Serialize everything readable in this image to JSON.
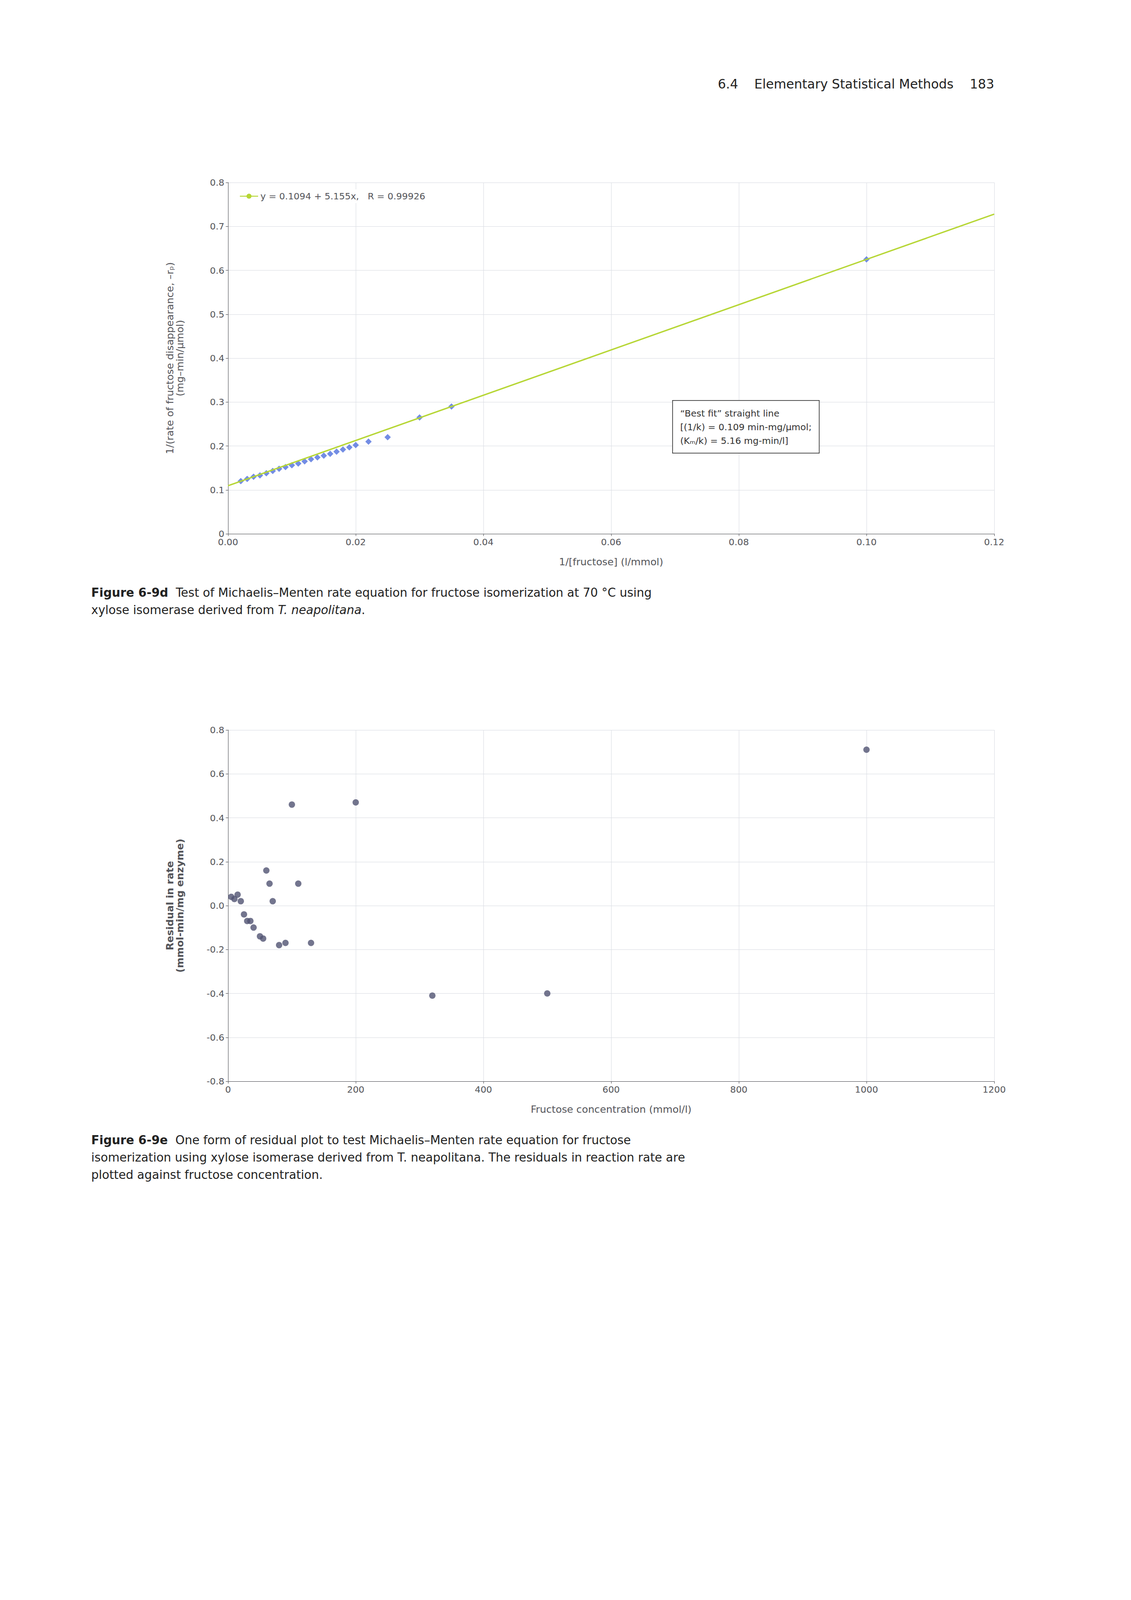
{
  "page_header": "6.4    Elementary Statistical Methods    183",
  "chart_data": [
    {
      "type": "scatter",
      "xlabel": "1/[fructose] (l/mmol)",
      "ylabel": "1/(rate of fructose disappearance, –rₚ)\n(mg–min/μmol)",
      "xlim": [
        0,
        0.12
      ],
      "ylim": [
        0,
        0.8
      ],
      "xticks": [
        {
          "value": 0,
          "label": "0.00"
        },
        0.02,
        0.04,
        0.06,
        0.08,
        {
          "value": 0.1,
          "label": "0.10"
        },
        0.12
      ],
      "yticks": [
        0,
        0.1,
        0.2,
        0.3,
        0.4,
        0.5,
        0.6,
        0.7,
        0.8
      ],
      "grid": true,
      "legend": "upper left",
      "series": [
        {
          "type": "scatter",
          "marker": "diamond",
          "x": [
            0.002,
            0.003,
            0.004,
            0.005,
            0.006,
            0.007,
            0.008,
            0.009,
            0.01,
            0.011,
            0.012,
            0.013,
            0.014,
            0.015,
            0.016,
            0.017,
            0.018,
            0.019,
            0.02,
            0.022,
            0.025,
            0.03,
            0.035,
            0.1
          ],
          "values": [
            0.12,
            0.125,
            0.13,
            0.133,
            0.138,
            0.143,
            0.148,
            0.152,
            0.156,
            0.16,
            0.165,
            0.17,
            0.174,
            0.178,
            0.182,
            0.187,
            0.192,
            0.197,
            0.202,
            0.21,
            0.22,
            0.265,
            0.29,
            0.625
          ]
        },
        {
          "type": "line",
          "name": "y = 0.1094 + 5.155x,   R = 0.99926",
          "line_style": "solid",
          "x": [
            0,
            0.12
          ],
          "values": [
            0.1094,
            0.728
          ]
        }
      ],
      "annotation": "“Best fit” straight line\n[(1/k) = 0.109 min-mg/μmol;\n(Kₘ/k) = 5.16 mg-min/l]",
      "caption_label": "Figure 6-9d",
      "caption": "Test of Michaelis–Menten rate equation for fructose isomerization at 70 °C using\nxylose isomerase derived from T. neapolitana.",
      "caption_italic": "T. neapolitana"
    },
    {
      "type": "scatter",
      "xlabel": "Fructose concentration (mmol/l)",
      "ylabel": "Residual in rate\n(mmol-min/mg enzyme)",
      "xlim": [
        0,
        1200
      ],
      "ylim": [
        -0.8,
        0.8
      ],
      "xticks": [
        0,
        200,
        400,
        600,
        800,
        1000,
        1200
      ],
      "yticks": [
        -0.8,
        -0.6,
        -0.4,
        -0.2,
        {
          "value": 0,
          "label": "0.0"
        },
        0.2,
        0.4,
        0.6,
        0.8
      ],
      "grid": true,
      "series": [
        {
          "type": "scatter",
          "marker": "circle",
          "x": [
            5,
            10,
            15,
            20,
            25,
            30,
            35,
            40,
            50,
            55,
            60,
            65,
            70,
            80,
            90,
            100,
            110,
            130,
            200,
            320,
            500,
            1000
          ],
          "values": [
            0.04,
            0.03,
            0.05,
            0.02,
            -0.04,
            -0.07,
            -0.07,
            -0.1,
            -0.14,
            -0.15,
            0.16,
            0.1,
            0.02,
            -0.18,
            -0.17,
            0.46,
            0.1,
            -0.17,
            0.47,
            -0.41,
            -0.4,
            0.71
          ]
        }
      ],
      "caption_label": "Figure 6-9e",
      "caption": "One form of residual plot to test Michaelis–Menten rate equation for fructose\nisomerization using xylose isomerase derived from T. neapolitana. The residuals in reaction rate are\nplotted against fructose concentration."
    }
  ]
}
